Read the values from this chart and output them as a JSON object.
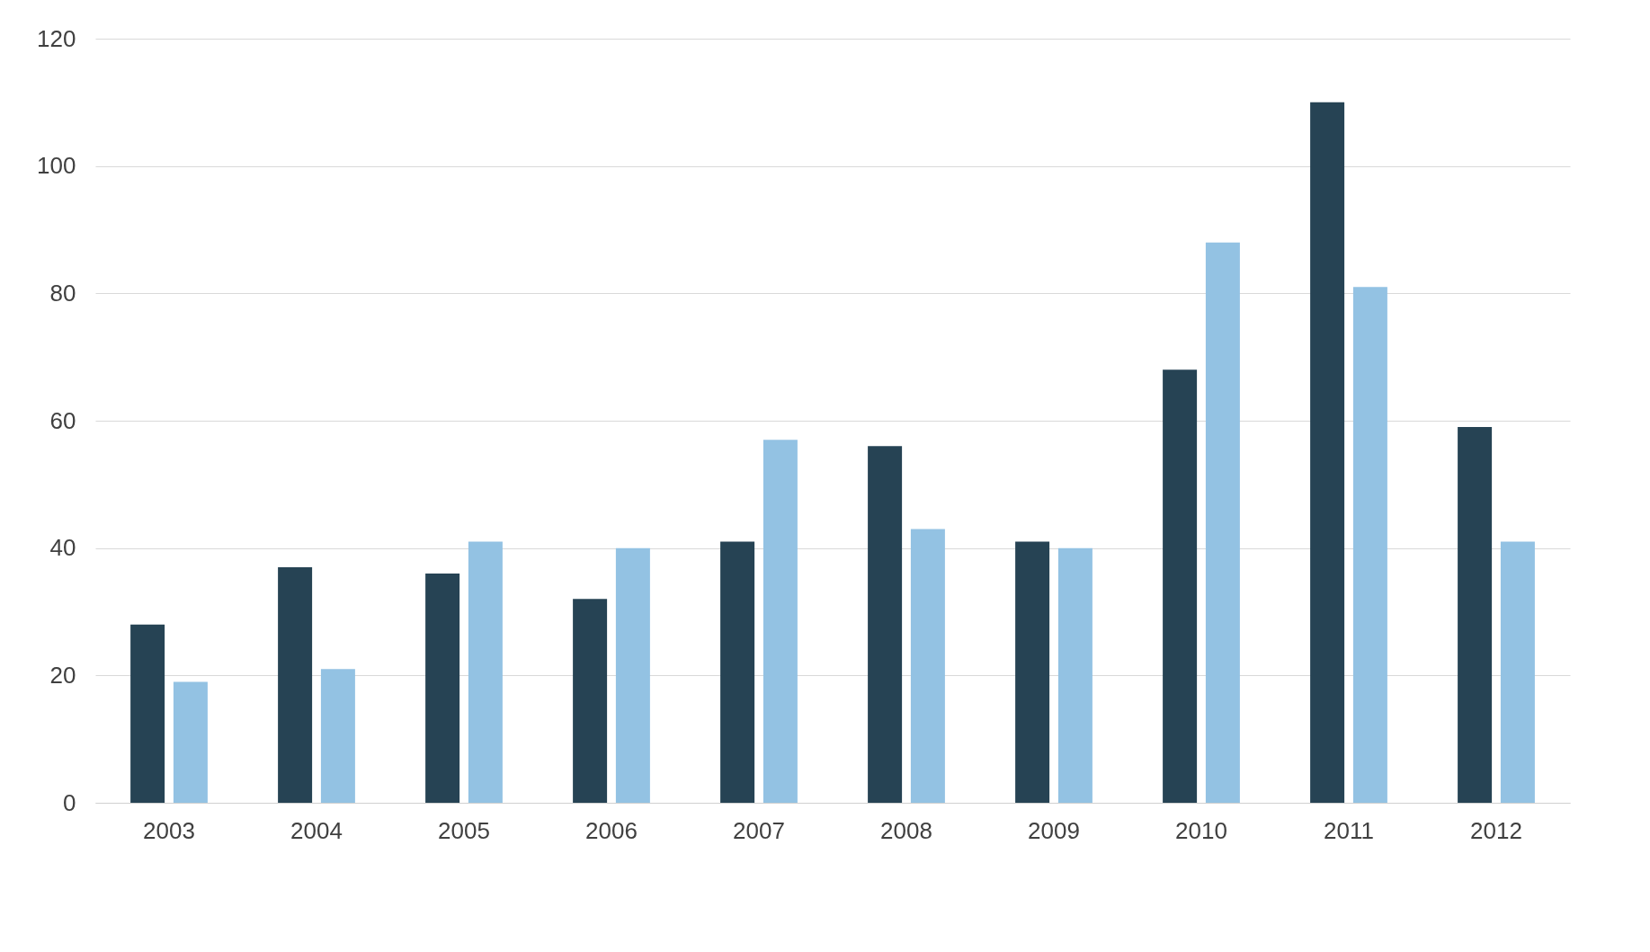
{
  "chart_data": {
    "type": "bar",
    "categories": [
      "2003",
      "2004",
      "2005",
      "2006",
      "2007",
      "2008",
      "2009",
      "2010",
      "2011",
      "2012"
    ],
    "series": [
      {
        "color": "#264354",
        "values": [
          28,
          37,
          36,
          32,
          41,
          56,
          41,
          68,
          110,
          59
        ]
      },
      {
        "color": "#93c2e3",
        "values": [
          19,
          21,
          41,
          40,
          57,
          43,
          40,
          88,
          81,
          41
        ]
      }
    ],
    "ylim": [
      0,
      120
    ],
    "yticks": [
      0,
      20,
      40,
      60,
      80,
      100,
      120
    ],
    "grid": "y",
    "legend": false
  }
}
